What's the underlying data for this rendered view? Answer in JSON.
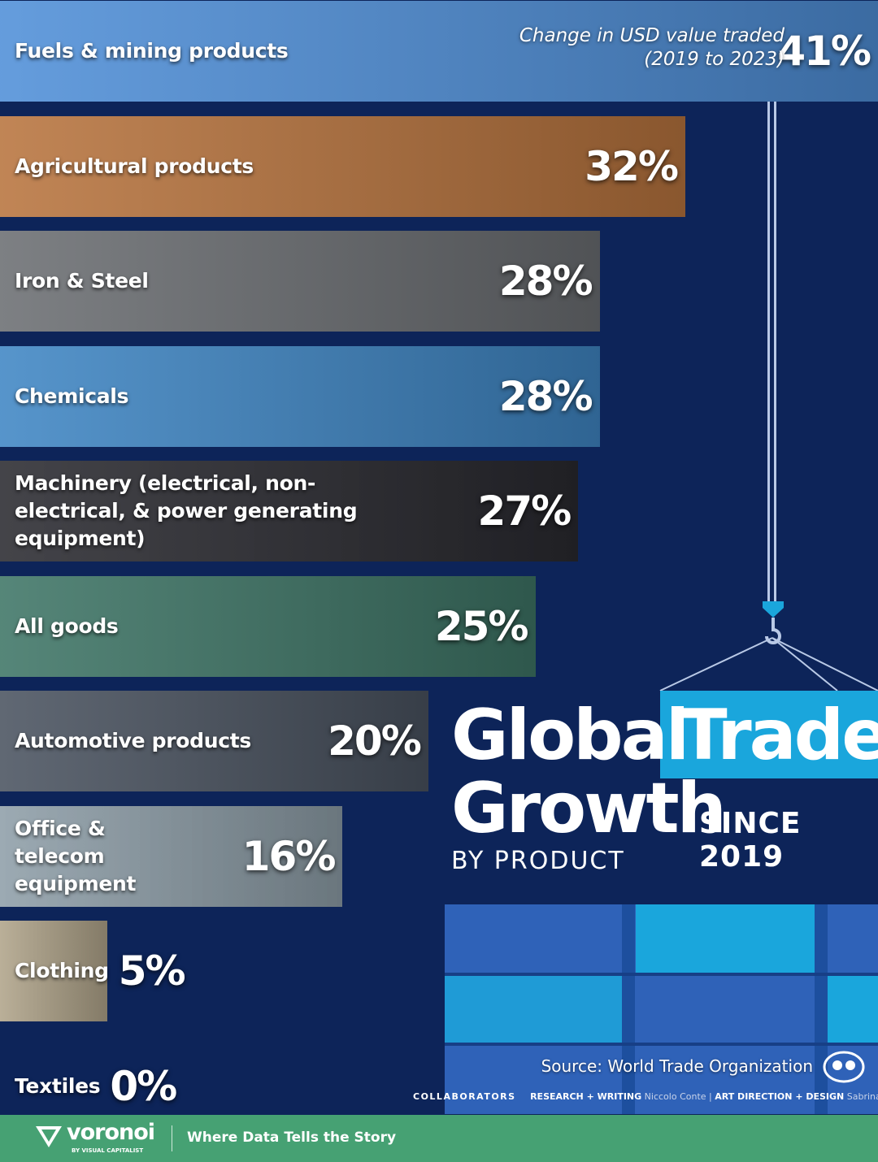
{
  "chart_data": {
    "type": "bar",
    "title_lines": [
      "Global",
      "Trade",
      "Growth"
    ],
    "subtitle": "SINCE 2019",
    "subtitle2": "BY PRODUCT",
    "annotation": [
      "Change in USD value traded",
      "(2019 to 2023)"
    ],
    "categories": [
      "Fuels & mining products",
      "Agricultural products",
      "Iron & Steel",
      "Chemicals",
      "Machinery (electrical, non-electrical, & power generating equipment)",
      "All goods",
      "Automotive products",
      "Office & telecom equipment",
      "Clothing",
      "Textiles"
    ],
    "values": [
      41,
      32,
      28,
      28,
      27,
      25,
      20,
      16,
      5,
      0
    ],
    "value_labels": [
      "41%",
      "32%",
      "28%",
      "28%",
      "27%",
      "25%",
      "20%",
      "16%",
      "5%",
      "0%"
    ],
    "colors": [
      "#4f8fd8",
      "#b8743e",
      "#6b6e72",
      "#3f86c4",
      "#2a2a30",
      "#3e7566",
      "#4a5360",
      "#8e9ea8",
      "#b0a48a",
      "#5a5a5a"
    ],
    "source": "Source: World Trade Organization",
    "collaborators": {
      "label": "COLLABORATORS",
      "research_label": "RESEARCH + WRITING",
      "research": "Niccolo Conte",
      "design_label": "ART DIRECTION + DESIGN",
      "design": "Sabrina Lam"
    },
    "footer": {
      "brand": "voronoi",
      "brand_sub": "BY VISUAL CAPITALIST",
      "tagline": "Where Data Tells the Story"
    }
  }
}
